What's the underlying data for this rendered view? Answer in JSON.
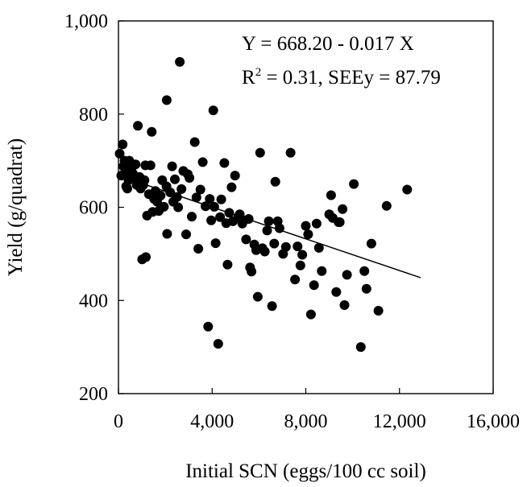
{
  "chart_data": {
    "type": "scatter",
    "title": "",
    "xlabel": "Initial SCN (eggs/100 cc soil)",
    "ylabel": "Yield (g/quadrat)",
    "xlim": [
      0,
      16000
    ],
    "ylim": [
      200,
      1000
    ],
    "x_tick_labels": [
      "0",
      "4,000",
      "8,000",
      "12,000",
      "16,000"
    ],
    "y_tick_labels": [
      "200",
      "400",
      "600",
      "800",
      "1,000"
    ],
    "x_ticks": [
      0,
      4000,
      8000,
      12000,
      16000
    ],
    "y_ticks": [
      200,
      400,
      600,
      800,
      1000
    ],
    "grid": false,
    "annotations": {
      "equation": "Y = 668.20 - 0.017 X",
      "r2_prefix": "R",
      "r2_sup": "2",
      "r2_suffix": " = 0.31, SEEy = 87.79"
    },
    "regression": {
      "intercept": 668.2,
      "slope": -0.017,
      "x_range": [
        0,
        12900
      ]
    },
    "series": [
      {
        "points": [
          [
            50,
            715
          ],
          [
            120,
            668
          ],
          [
            180,
            735
          ],
          [
            210,
            688
          ],
          [
            260,
            700
          ],
          [
            290,
            672
          ],
          [
            330,
            645
          ],
          [
            380,
            640
          ],
          [
            430,
            658
          ],
          [
            460,
            700
          ],
          [
            520,
            688
          ],
          [
            560,
            684
          ],
          [
            620,
            672
          ],
          [
            680,
            665
          ],
          [
            730,
            692
          ],
          [
            780,
            648
          ],
          [
            830,
            775
          ],
          [
            900,
            665
          ],
          [
            950,
            640
          ],
          [
            1010,
            488
          ],
          [
            1060,
            648
          ],
          [
            1110,
            658
          ],
          [
            1150,
            690
          ],
          [
            1170,
            493
          ],
          [
            1220,
            582
          ],
          [
            1300,
            628
          ],
          [
            1370,
            690
          ],
          [
            1420,
            762
          ],
          [
            1460,
            590
          ],
          [
            1520,
            618
          ],
          [
            1580,
            635
          ],
          [
            1650,
            612
          ],
          [
            1720,
            592
          ],
          [
            1800,
            625
          ],
          [
            1870,
            658
          ],
          [
            1940,
            601
          ],
          [
            2050,
            645
          ],
          [
            2060,
            830
          ],
          [
            2080,
            543
          ],
          [
            2210,
            632
          ],
          [
            2290,
            688
          ],
          [
            2340,
            612
          ],
          [
            2410,
            660
          ],
          [
            2500,
            622
          ],
          [
            2550,
            600
          ],
          [
            2620,
            912
          ],
          [
            2690,
            639
          ],
          [
            2770,
            678
          ],
          [
            2890,
            542
          ],
          [
            2960,
            671
          ],
          [
            3030,
            663
          ],
          [
            3130,
            580
          ],
          [
            3260,
            740
          ],
          [
            3330,
            621
          ],
          [
            3410,
            511
          ],
          [
            3500,
            638
          ],
          [
            3600,
            697
          ],
          [
            3720,
            602
          ],
          [
            3830,
            344
          ],
          [
            3900,
            618
          ],
          [
            3960,
            572
          ],
          [
            4050,
            808
          ],
          [
            4090,
            601
          ],
          [
            4150,
            523
          ],
          [
            4260,
            307
          ],
          [
            4340,
            579
          ],
          [
            4390,
            617
          ],
          [
            4520,
            695
          ],
          [
            4600,
            566
          ],
          [
            4660,
            477
          ],
          [
            4730,
            588
          ],
          [
            4830,
            643
          ],
          [
            4890,
            570
          ],
          [
            4980,
            668
          ],
          [
            5120,
            580
          ],
          [
            5180,
            585
          ],
          [
            5290,
            565
          ],
          [
            5350,
            572
          ],
          [
            5450,
            531
          ],
          [
            5560,
            575
          ],
          [
            5620,
            471
          ],
          [
            5680,
            462
          ],
          [
            5800,
            520
          ],
          [
            5880,
            508
          ],
          [
            5950,
            408
          ],
          [
            6050,
            717
          ],
          [
            6150,
            512
          ],
          [
            6250,
            505
          ],
          [
            6350,
            550
          ],
          [
            6420,
            570
          ],
          [
            6560,
            388
          ],
          [
            6650,
            522
          ],
          [
            6700,
            655
          ],
          [
            6800,
            570
          ],
          [
            6880,
            555
          ],
          [
            7030,
            500
          ],
          [
            7150,
            515
          ],
          [
            7350,
            717
          ],
          [
            7540,
            445
          ],
          [
            7650,
            516
          ],
          [
            7770,
            475
          ],
          [
            7850,
            498
          ],
          [
            8000,
            560
          ],
          [
            8100,
            542
          ],
          [
            8220,
            370
          ],
          [
            8350,
            433
          ],
          [
            8460,
            565
          ],
          [
            8560,
            513
          ],
          [
            8680,
            463
          ],
          [
            9000,
            585
          ],
          [
            9080,
            626
          ],
          [
            9150,
            577
          ],
          [
            9300,
            418
          ],
          [
            9400,
            568
          ],
          [
            9450,
            568
          ],
          [
            9570,
            596
          ],
          [
            9650,
            390
          ],
          [
            9760,
            455
          ],
          [
            10050,
            650
          ],
          [
            10350,
            300
          ],
          [
            10500,
            463
          ],
          [
            10590,
            425
          ],
          [
            10800,
            522
          ],
          [
            11100,
            378
          ],
          [
            11450,
            603
          ],
          [
            12330,
            638
          ]
        ]
      }
    ]
  }
}
